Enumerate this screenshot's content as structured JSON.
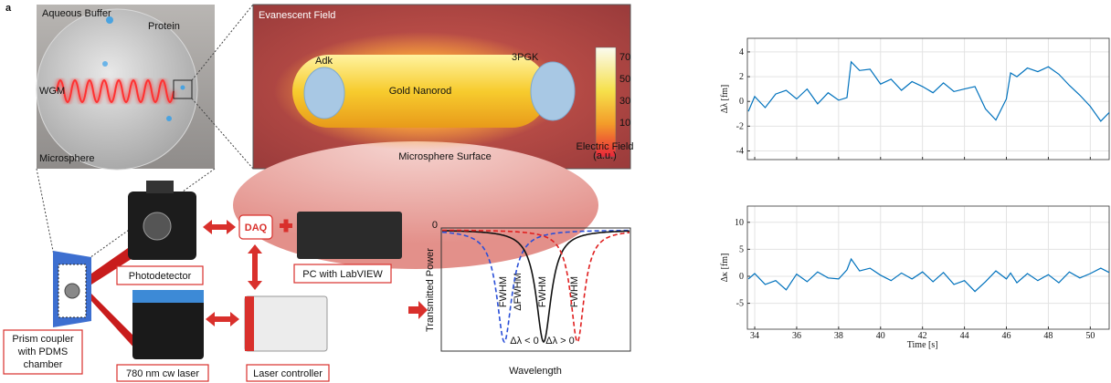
{
  "panel_label": "a",
  "sphere_photo": {
    "buffer": "Aqueous Buffer",
    "protein": "Protein",
    "wgm": "WGM",
    "microsphere": "Microsphere"
  },
  "field_panel": {
    "title": "Evanescent Field",
    "protein_left": "Adk",
    "protein_right": "3PGK",
    "rod": "Gold Nanorod",
    "surface": "Microsphere Surface",
    "colorbar_ticks": [
      70,
      50,
      30,
      10
    ],
    "colorbar_title": [
      "Electric Field",
      "(a.u.)"
    ]
  },
  "setup": {
    "daq": "DAQ",
    "photodetector": "Photodetector",
    "pc": "PC with LabVIEW",
    "prism": [
      "Prism coupler",
      "with PDMS",
      "chamber"
    ],
    "laser": "780 nm cw laser",
    "controller": "Laser controller"
  },
  "resonance_plot": {
    "y_label": "Transmitted Power",
    "x_label": "Wavelength",
    "y_tick": 0,
    "fwhm_labels": [
      "FWHM",
      "ΔFWHM",
      "FWHM",
      "FWHM"
    ],
    "shift_labels": [
      "Δλ < 0",
      "Δλ > 0"
    ]
  },
  "chart_data": [
    {
      "type": "line",
      "y_label": "Δλ [fm]",
      "color": "#0072bd",
      "grid": true,
      "x": [
        33.7,
        34,
        34.5,
        35,
        35.5,
        36,
        36.5,
        37,
        37.5,
        38,
        38.4,
        38.6,
        39,
        39.5,
        40,
        40.5,
        41,
        41.5,
        42,
        42.5,
        43,
        43.5,
        44,
        44.5,
        45,
        45.5,
        46,
        46.2,
        46.5,
        47,
        47.5,
        48,
        48.5,
        49,
        49.5,
        50,
        50.5,
        50.9
      ],
      "values": [
        -0.8,
        0.4,
        -0.5,
        0.6,
        0.9,
        0.2,
        1.0,
        -0.2,
        0.7,
        0.1,
        0.3,
        3.2,
        2.5,
        2.6,
        1.4,
        1.8,
        0.9,
        1.6,
        1.2,
        0.7,
        1.5,
        0.8,
        1.0,
        1.2,
        -0.6,
        -1.5,
        0.2,
        2.3,
        2.0,
        2.7,
        2.4,
        2.8,
        2.2,
        1.3,
        0.5,
        -0.4,
        -1.6,
        -0.9
      ],
      "xlim": [
        33.65,
        50.9
      ],
      "ylim": [
        -4.7,
        5.1
      ],
      "yticks": [
        -4,
        -2,
        0,
        2,
        4
      ]
    },
    {
      "type": "line",
      "y_label": "Δκ [fm]",
      "x_label": "Time [s]",
      "color": "#0072bd",
      "grid": true,
      "x": [
        33.7,
        34,
        34.5,
        35,
        35.5,
        36,
        36.5,
        37,
        37.5,
        38,
        38.4,
        38.6,
        39,
        39.5,
        40,
        40.5,
        41,
        41.5,
        42,
        42.5,
        43,
        43.5,
        44,
        44.5,
        45,
        45.5,
        46,
        46.2,
        46.5,
        47,
        47.5,
        48,
        48.5,
        49,
        49.5,
        50,
        50.5,
        50.9
      ],
      "values": [
        -0.5,
        0.5,
        -1.5,
        -0.8,
        -2.5,
        0.4,
        -1.0,
        0.8,
        -0.3,
        -0.5,
        1.2,
        3.2,
        1.0,
        1.5,
        0.2,
        -0.8,
        0.6,
        -0.5,
        0.8,
        -1.0,
        0.7,
        -1.5,
        -0.8,
        -2.8,
        -1.0,
        1.0,
        -0.5,
        0.6,
        -1.2,
        0.5,
        -0.8,
        0.3,
        -1.2,
        0.8,
        -0.3,
        0.5,
        1.5,
        0.7
      ],
      "xlim": [
        33.65,
        50.9
      ],
      "ylim": [
        -9.8,
        13
      ],
      "xticks": [
        34,
        36,
        38,
        40,
        42,
        44,
        46,
        48,
        50
      ],
      "yticks": [
        -5,
        0,
        5,
        10
      ]
    }
  ]
}
